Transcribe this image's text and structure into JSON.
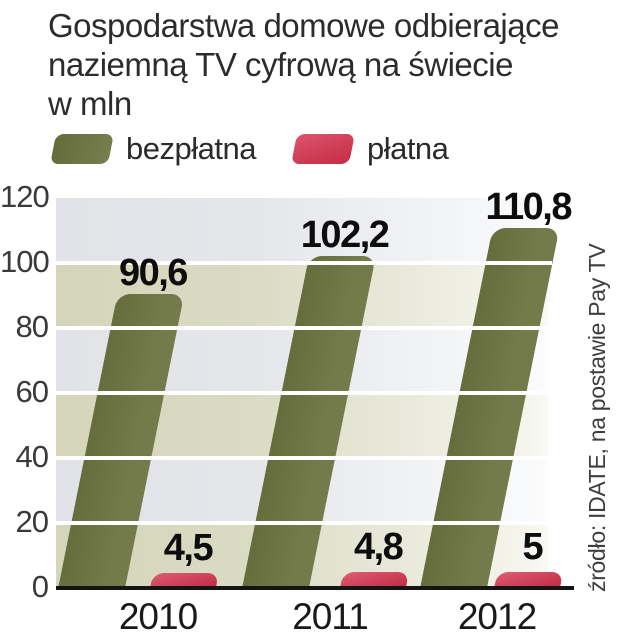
{
  "title_lines": [
    "Gospodarstwa domowe odbierające",
    "naziemną TV cyfrową na świecie",
    "w mln"
  ],
  "chart_data": {
    "type": "bar",
    "title": "Gospodarstwa domowe odbierające naziemną TV cyfrową na świecie w mln",
    "categories": [
      "2010",
      "2011",
      "2012"
    ],
    "series": [
      {
        "name": "bezpłatna",
        "ascii": "bezplatna",
        "color": "#6b7340",
        "values": [
          90.6,
          102.2,
          110.8
        ],
        "value_labels": [
          "90,6",
          "102,2",
          "110,8"
        ]
      },
      {
        "name": "płatna",
        "ascii": "platna",
        "color": "#d5304b",
        "values": [
          4.5,
          4.8,
          5
        ],
        "value_labels": [
          "4,5",
          "4,8",
          "5"
        ]
      }
    ],
    "ylim": [
      0,
      120
    ],
    "yticks": [
      0,
      20,
      40,
      60,
      80,
      100,
      120
    ],
    "grid": "horizontal-white-lines-over-bars",
    "legend_position": "top",
    "band_colors": {
      "cool": "#e2e4e9",
      "beige": "#d5d6ba"
    },
    "source": "źródło: IDATE, na postawie Pay TV"
  }
}
